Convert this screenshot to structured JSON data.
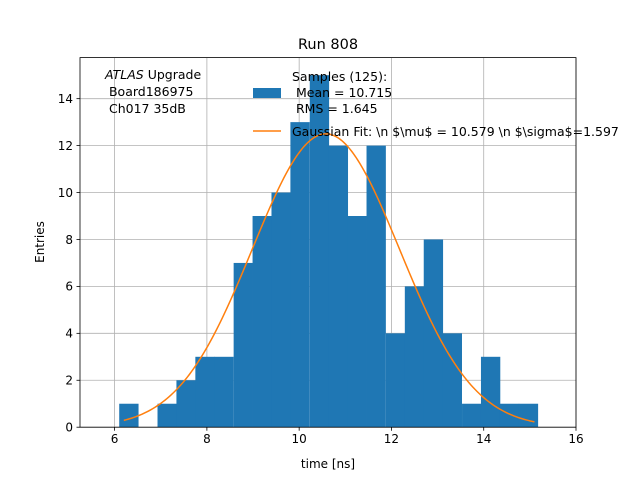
{
  "chart_data": {
    "type": "bar",
    "title": "Run 808",
    "xlabel": "time [ns]",
    "ylabel": "Entries",
    "xlim": [
      5.25,
      16.0
    ],
    "ylim": [
      0,
      15.75
    ],
    "xticks": [
      6,
      8,
      10,
      12,
      14,
      16
    ],
    "yticks": [
      0,
      2,
      4,
      6,
      8,
      10,
      12,
      14
    ],
    "grid": true,
    "bin_width": 0.4125,
    "bins": [
      {
        "left": 6.1,
        "count": 1
      },
      {
        "left": 6.51,
        "count": 0
      },
      {
        "left": 6.93,
        "count": 1
      },
      {
        "left": 7.34,
        "count": 2
      },
      {
        "left": 7.75,
        "count": 3
      },
      {
        "left": 8.16,
        "count": 3
      },
      {
        "left": 8.58,
        "count": 7
      },
      {
        "left": 8.99,
        "count": 9
      },
      {
        "left": 9.4,
        "count": 10
      },
      {
        "left": 9.81,
        "count": 13
      },
      {
        "left": 10.23,
        "count": 15
      },
      {
        "left": 10.64,
        "count": 12
      },
      {
        "left": 11.05,
        "count": 9
      },
      {
        "left": 11.46,
        "count": 12
      },
      {
        "left": 11.88,
        "count": 4
      },
      {
        "left": 12.29,
        "count": 6
      },
      {
        "left": 12.7,
        "count": 8
      },
      {
        "left": 13.11,
        "count": 4
      },
      {
        "left": 13.53,
        "count": 1
      },
      {
        "left": 13.94,
        "count": 3
      },
      {
        "left": 14.35,
        "count": 1
      },
      {
        "left": 14.76,
        "count": 1
      }
    ],
    "fit": {
      "mu": 10.579,
      "sigma": 1.597,
      "amplitude": 12.5,
      "x_range": [
        6.2,
        15.1
      ]
    },
    "colors": {
      "bars": "#1f77b4",
      "fit": "#ff7f0e",
      "grid": "#b0b0b0"
    },
    "legend": {
      "placement": "top-right",
      "entries": [
        {
          "lines": [
            "Samples (125):",
            " Mean = 10.715",
            " RMS = 1.645"
          ]
        },
        {
          "lines": [
            "Gaussian Fit: \\n $\\mu$ = 10.579 \\n $\\sigma$=1.597"
          ]
        }
      ]
    },
    "annotation": {
      "italic": "ATLAS",
      "rest": " Upgrade",
      "lines": [
        " Board186975",
        " Ch017 35dB"
      ]
    }
  }
}
